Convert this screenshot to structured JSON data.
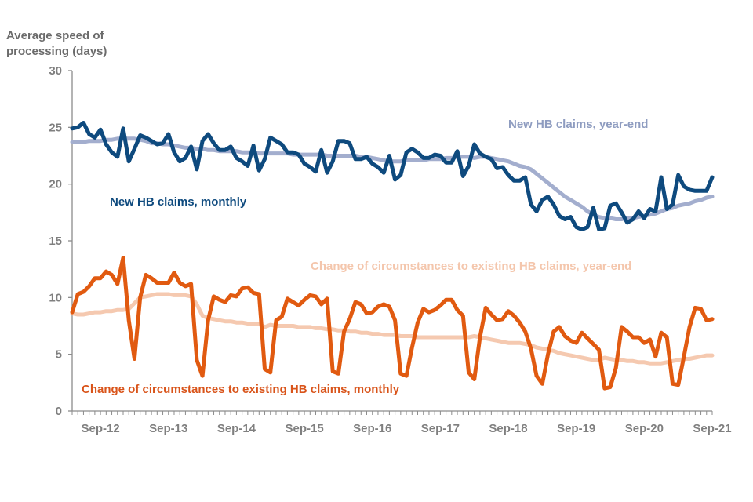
{
  "chart_data": {
    "type": "line",
    "title": "",
    "ylabel": "Average speed of processing (days)",
    "xlabel": "",
    "ylim": [
      0,
      30
    ],
    "yticks": [
      0,
      5,
      10,
      15,
      20,
      25,
      30
    ],
    "x_start": "Apr-12",
    "x_end": "Sep-21",
    "x_frequency": "monthly",
    "xtick_labels": [
      {
        "label": "Sep-12",
        "index": 5
      },
      {
        "label": "Sep-13",
        "index": 17
      },
      {
        "label": "Sep-14",
        "index": 29
      },
      {
        "label": "Sep-15",
        "index": 41
      },
      {
        "label": "Sep-16",
        "index": 53
      },
      {
        "label": "Sep-17",
        "index": 65
      },
      {
        "label": "Sep-18",
        "index": 77
      },
      {
        "label": "Sep-19",
        "index": 89
      },
      {
        "label": "Sep-20",
        "index": 101
      },
      {
        "label": "Sep-21",
        "index": 113
      }
    ],
    "grid": false,
    "legend": "inline labels",
    "series": [
      {
        "name": "New HB claims, monthly",
        "color": "#0e4a7e",
        "label_color": "#0e4a7e",
        "values": [
          24.9,
          25.0,
          25.4,
          24.4,
          24.1,
          24.8,
          23.5,
          22.8,
          22.4,
          24.9,
          22.0,
          23.1,
          24.3,
          24.1,
          23.8,
          23.5,
          23.6,
          24.4,
          22.8,
          22.0,
          22.3,
          23.3,
          21.3,
          23.8,
          24.4,
          23.6,
          23.0,
          23.0,
          23.3,
          22.3,
          22.0,
          21.6,
          23.4,
          21.2,
          22.2,
          24.1,
          23.8,
          23.5,
          22.8,
          22.8,
          22.6,
          21.8,
          21.5,
          21.1,
          23.0,
          21.0,
          22.0,
          23.8,
          23.8,
          23.6,
          22.2,
          22.2,
          22.4,
          21.8,
          21.5,
          21.0,
          22.5,
          20.4,
          20.8,
          22.8,
          23.1,
          22.8,
          22.3,
          22.3,
          22.6,
          22.5,
          21.9,
          21.9,
          22.9,
          20.7,
          21.6,
          23.5,
          22.7,
          22.4,
          22.2,
          21.4,
          21.5,
          20.8,
          20.3,
          20.3,
          20.6,
          18.2,
          17.6,
          18.6,
          18.9,
          18.2,
          17.2,
          16.9,
          17.1,
          16.2,
          16.0,
          16.2,
          17.9,
          16.0,
          16.1,
          18.1,
          18.3,
          17.5,
          16.6,
          16.9,
          17.6,
          17.0,
          17.8,
          17.6,
          20.6,
          17.8,
          18.2,
          20.8,
          19.8,
          19.5,
          19.4,
          19.4,
          19.4,
          20.6
        ]
      },
      {
        "name": "New HB claims, year-end",
        "color": "#a3aece",
        "label_color": "#8e9cc0",
        "values": [
          23.7,
          23.7,
          23.7,
          23.8,
          23.8,
          23.8,
          23.9,
          23.9,
          24.0,
          24.0,
          24.0,
          24.0,
          23.9,
          23.8,
          23.6,
          23.6,
          23.5,
          23.5,
          23.4,
          23.3,
          23.2,
          23.2,
          23.1,
          23.1,
          23.0,
          23.0,
          22.9,
          22.9,
          22.9,
          22.9,
          22.8,
          22.8,
          22.8,
          22.7,
          22.7,
          22.7,
          22.7,
          22.7,
          22.7,
          22.6,
          22.6,
          22.6,
          22.6,
          22.6,
          22.6,
          22.5,
          22.5,
          22.5,
          22.5,
          22.5,
          22.5,
          22.4,
          22.4,
          22.3,
          22.2,
          22.1,
          22.0,
          22.0,
          22.0,
          22.1,
          22.1,
          22.1,
          22.1,
          22.2,
          22.2,
          22.2,
          22.3,
          22.3,
          22.4,
          22.4,
          22.4,
          22.3,
          22.4,
          22.4,
          22.3,
          22.2,
          22.1,
          22.0,
          21.8,
          21.6,
          21.5,
          21.3,
          20.9,
          20.5,
          20.1,
          19.7,
          19.3,
          18.9,
          18.6,
          18.3,
          18.0,
          17.6,
          17.3,
          17.1,
          17.0,
          17.0,
          16.9,
          16.9,
          17.0,
          17.0,
          17.1,
          17.2,
          17.3,
          17.4,
          17.6,
          17.8,
          17.9,
          18.1,
          18.2,
          18.3,
          18.5,
          18.6,
          18.8,
          18.9
        ]
      },
      {
        "name": "Change of circumstances to existing HB claims, monthly",
        "color": "#e15a10",
        "label_color": "#d9541a",
        "values": [
          8.7,
          10.3,
          10.5,
          11.0,
          11.7,
          11.7,
          12.3,
          12.0,
          11.2,
          13.5,
          8.0,
          4.6,
          10.0,
          12.0,
          11.7,
          11.3,
          11.3,
          11.3,
          12.2,
          11.3,
          11.0,
          11.2,
          4.5,
          3.1,
          8.0,
          10.1,
          9.8,
          9.6,
          10.2,
          10.1,
          10.8,
          10.9,
          10.4,
          10.3,
          3.7,
          3.4,
          8.0,
          8.3,
          9.9,
          9.6,
          9.3,
          9.8,
          10.2,
          10.1,
          9.4,
          9.9,
          3.5,
          3.3,
          7.0,
          8.1,
          9.6,
          9.4,
          8.6,
          8.7,
          9.2,
          9.4,
          9.2,
          8.0,
          3.3,
          3.1,
          5.6,
          7.8,
          9.0,
          8.7,
          8.9,
          9.3,
          9.8,
          9.8,
          8.9,
          8.4,
          3.4,
          2.8,
          6.5,
          9.1,
          8.5,
          8.0,
          8.1,
          8.8,
          8.4,
          7.8,
          7.0,
          5.5,
          3.1,
          2.4,
          5.0,
          7.0,
          7.4,
          6.6,
          6.2,
          6.0,
          6.9,
          6.4,
          5.9,
          5.4,
          2.0,
          2.1,
          3.8,
          7.4,
          7.0,
          6.5,
          6.5,
          6.0,
          6.3,
          4.8,
          6.9,
          6.5,
          2.4,
          2.3,
          4.8,
          7.4,
          9.1,
          9.0,
          8.0,
          8.1
        ]
      },
      {
        "name": "Change of circumstances to existing HB claims, year-end",
        "color": "#f5c9b0",
        "label_color": "#f4c6ac",
        "values": [
          8.6,
          8.5,
          8.5,
          8.6,
          8.7,
          8.7,
          8.8,
          8.8,
          8.9,
          8.9,
          9.0,
          9.5,
          10.0,
          10.1,
          10.2,
          10.3,
          10.3,
          10.3,
          10.2,
          10.2,
          10.2,
          10.1,
          9.4,
          8.4,
          8.2,
          8.1,
          8.0,
          7.9,
          7.9,
          7.8,
          7.8,
          7.7,
          7.7,
          7.7,
          7.4,
          7.6,
          7.5,
          7.5,
          7.5,
          7.5,
          7.4,
          7.4,
          7.4,
          7.3,
          7.3,
          7.2,
          7.2,
          7.1,
          7.1,
          7.0,
          7.0,
          6.9,
          6.9,
          6.8,
          6.8,
          6.7,
          6.7,
          6.7,
          6.6,
          6.6,
          6.6,
          6.5,
          6.5,
          6.5,
          6.5,
          6.5,
          6.5,
          6.5,
          6.5,
          6.5,
          6.5,
          6.6,
          6.5,
          6.4,
          6.3,
          6.2,
          6.1,
          6.0,
          6.0,
          6.0,
          5.9,
          5.8,
          5.6,
          5.5,
          5.4,
          5.3,
          5.1,
          5.0,
          4.9,
          4.8,
          4.7,
          4.6,
          4.5,
          4.5,
          4.7,
          4.6,
          4.5,
          4.5,
          4.4,
          4.4,
          4.3,
          4.3,
          4.2,
          4.2,
          4.2,
          4.3,
          4.4,
          4.5,
          4.6,
          4.6,
          4.7,
          4.8,
          4.9,
          4.9
        ]
      }
    ],
    "ylabel_lines": [
      "Average speed of",
      "processing (days)"
    ]
  }
}
